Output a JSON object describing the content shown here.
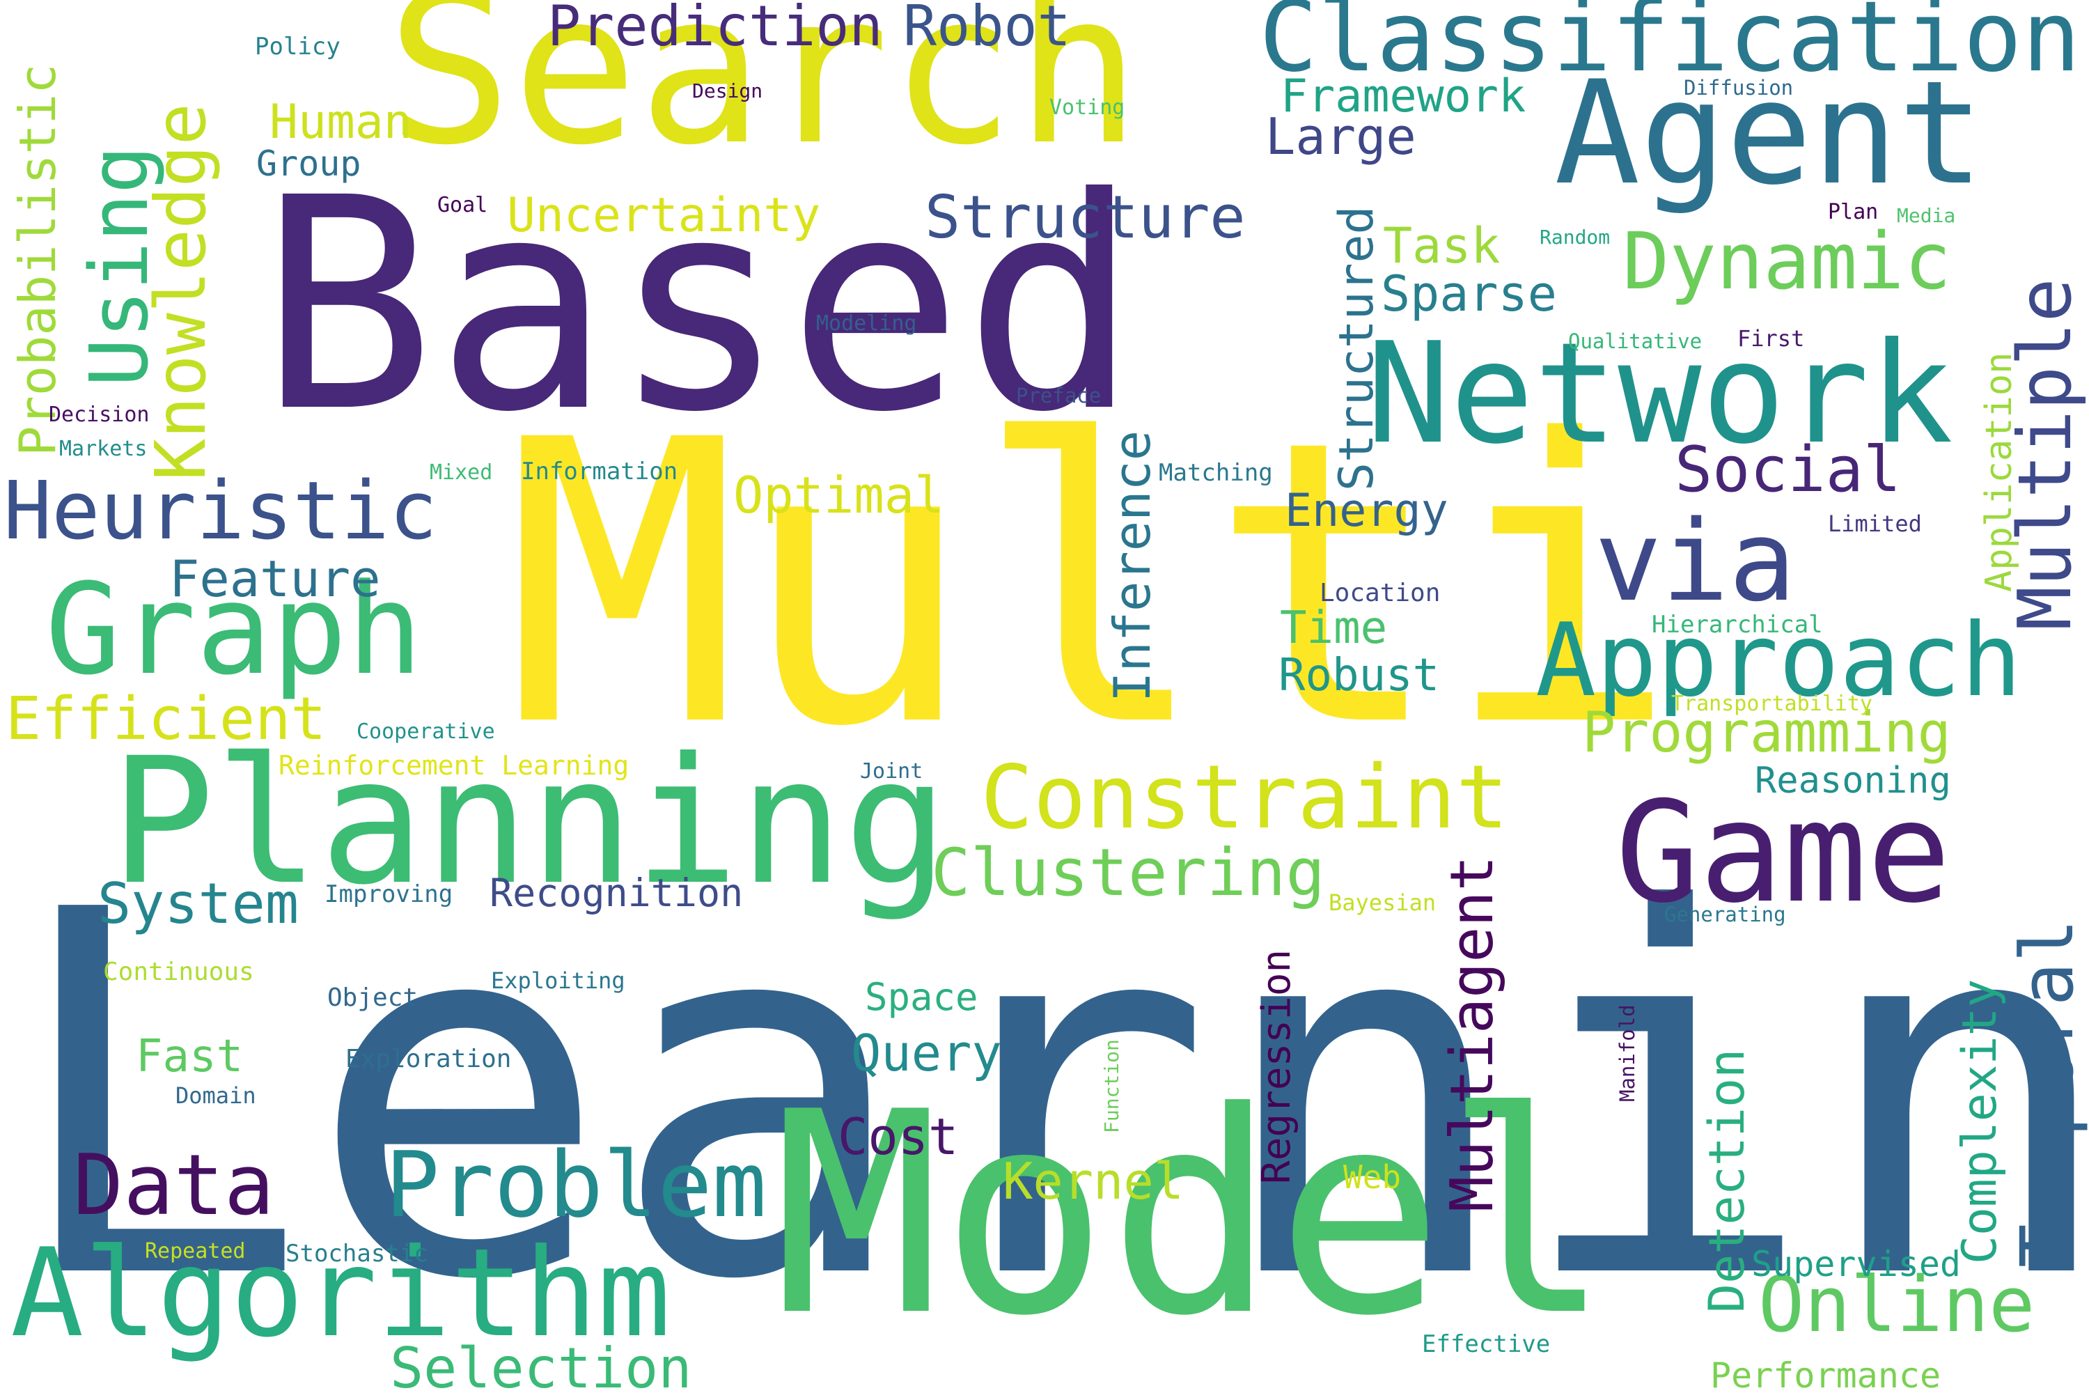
{
  "colors": {
    "background": "#ffffff",
    "palette": [
      "#440154",
      "#482777",
      "#3e4a89",
      "#31688e",
      "#26828e",
      "#1f9e89",
      "#35b779",
      "#6ece58",
      "#b5de2b",
      "#fde725"
    ]
  },
  "words": [
    {
      "id": "learning",
      "text": "Learning",
      "color": "#33638d"
    },
    {
      "id": "multi",
      "text": "Multi",
      "color": "#fde725"
    },
    {
      "id": "based",
      "text": "Based",
      "color": "#482878"
    },
    {
      "id": "model",
      "text": "Model",
      "color": "#4ac16d"
    },
    {
      "id": "search",
      "text": "Search",
      "color": "#dfe318"
    },
    {
      "id": "planning",
      "text": "Planning",
      "color": "#3dbc74"
    },
    {
      "id": "game",
      "text": "Game",
      "color": "#481f70"
    },
    {
      "id": "agent",
      "text": "Agent",
      "color": "#2c728e"
    },
    {
      "id": "network",
      "text": "Network",
      "color": "#20928c"
    },
    {
      "id": "graph",
      "text": "Graph",
      "color": "#3bbb75"
    },
    {
      "id": "algorithm",
      "text": "Algorithm",
      "color": "#27ad81"
    },
    {
      "id": "approach",
      "text": "Approach",
      "color": "#1f988b"
    },
    {
      "id": "classification",
      "text": "Classification",
      "color": "#2a788e"
    },
    {
      "id": "constraint",
      "text": "Constraint",
      "color": "#d2e21b"
    },
    {
      "id": "via",
      "text": "via",
      "color": "#3e4989"
    },
    {
      "id": "problem",
      "text": "Problem",
      "color": "#238a8d"
    },
    {
      "id": "heuristic",
      "text": "Heuristic",
      "color": "#3b528b"
    },
    {
      "id": "data",
      "text": "Data",
      "color": "#450f60"
    },
    {
      "id": "online",
      "text": "Online",
      "color": "#5ec962"
    },
    {
      "id": "temporal",
      "text": "Temporal",
      "color": "#33638d"
    },
    {
      "id": "multiple",
      "text": "Multiple",
      "color": "#3e4a89"
    },
    {
      "id": "dynamic",
      "text": "Dynamic",
      "color": "#6ccd5a"
    },
    {
      "id": "clustering",
      "text": "Clustering",
      "color": "#6ece58"
    },
    {
      "id": "using",
      "text": "Using",
      "color": "#35b779"
    },
    {
      "id": "knowledge",
      "text": "Knowledge",
      "color": "#c2df23"
    },
    {
      "id": "structure",
      "text": "Structure",
      "color": "#3b528b"
    },
    {
      "id": "programming",
      "text": "Programming",
      "color": "#a0da39"
    },
    {
      "id": "multiagent",
      "text": "Multiagent",
      "color": "#46085c"
    },
    {
      "id": "selection",
      "text": "Selection",
      "color": "#3aba76"
    },
    {
      "id": "efficient",
      "text": "Efficient",
      "color": "#d5e21a"
    },
    {
      "id": "social",
      "text": "Social",
      "color": "#482677"
    },
    {
      "id": "system",
      "text": "System",
      "color": "#25858e"
    },
    {
      "id": "probabilistic",
      "text": "Probabilistic",
      "color": "#9fda3a"
    },
    {
      "id": "uncertainty",
      "text": "Uncertainty",
      "color": "#dae319"
    },
    {
      "id": "prediction",
      "text": "Prediction",
      "color": "#472c7a"
    },
    {
      "id": "robot",
      "text": "Robot",
      "color": "#3a548c"
    },
    {
      "id": "feature",
      "text": "Feature",
      "color": "#2d718e"
    },
    {
      "id": "inference",
      "text": "Inference",
      "color": "#2a768e"
    },
    {
      "id": "optimal",
      "text": "Optimal",
      "color": "#d8e219"
    },
    {
      "id": "complexity",
      "text": "Complexity",
      "color": "#22a785"
    },
    {
      "id": "detection",
      "text": "Detection",
      "color": "#29af7f"
    },
    {
      "id": "kernel",
      "text": "Kernel",
      "color": "#b8de29"
    },
    {
      "id": "structured",
      "text": "Structured",
      "color": "#2c728e"
    },
    {
      "id": "framework",
      "text": "Framework",
      "color": "#20a386"
    },
    {
      "id": "human",
      "text": "Human",
      "color": "#cde11d"
    },
    {
      "id": "recognition",
      "text": "Recognition",
      "color": "#3e4c8a"
    },
    {
      "id": "cost",
      "text": "Cost",
      "color": "#481769"
    },
    {
      "id": "query",
      "text": "Query",
      "color": "#238a8d"
    },
    {
      "id": "sparse",
      "text": "Sparse",
      "color": "#277f8e"
    },
    {
      "id": "energy",
      "text": "Energy",
      "color": "#33638d"
    },
    {
      "id": "robust",
      "text": "Robust",
      "color": "#1f968b"
    },
    {
      "id": "task",
      "text": "Task",
      "color": "#9dd93b"
    },
    {
      "id": "large",
      "text": "Large",
      "color": "#3f4788"
    },
    {
      "id": "regression",
      "text": "Regression",
      "color": "#440154"
    },
    {
      "id": "reasoning",
      "text": "Reasoning",
      "color": "#21908d"
    },
    {
      "id": "fast",
      "text": "Fast",
      "color": "#5ec962"
    },
    {
      "id": "time",
      "text": "Time",
      "color": "#4ac16d"
    },
    {
      "id": "supervised",
      "text": "Supervised",
      "color": "#1fa088"
    },
    {
      "id": "space",
      "text": "Space",
      "color": "#2ab07f"
    },
    {
      "id": "group",
      "text": "Group",
      "color": "#2d708e"
    },
    {
      "id": "application",
      "text": "Application",
      "color": "#9bd93c"
    },
    {
      "id": "performance",
      "text": "Performance",
      "color": "#7ad151"
    },
    {
      "id": "web",
      "text": "Web",
      "color": "#d0e11c"
    },
    {
      "id": "reinforcement-learning",
      "text": "Reinforcement Learning",
      "color": "#e2e418"
    },
    {
      "id": "exploration",
      "text": "Exploration",
      "color": "#2e6f8e"
    },
    {
      "id": "information",
      "text": "Information",
      "color": "#23898e"
    },
    {
      "id": "stochastic",
      "text": "Stochastic",
      "color": "#277f8e"
    },
    {
      "id": "cooperative",
      "text": "Cooperative",
      "color": "#21918c"
    },
    {
      "id": "hierarchical",
      "text": "Hierarchical",
      "color": "#35b779"
    },
    {
      "id": "matching",
      "text": "Matching",
      "color": "#2a788e"
    },
    {
      "id": "location",
      "text": "Location",
      "color": "#3e4a89"
    },
    {
      "id": "continuous",
      "text": "Continuous",
      "color": "#addc30"
    },
    {
      "id": "exploiting",
      "text": "Exploiting",
      "color": "#2a768e"
    },
    {
      "id": "object",
      "text": "Object",
      "color": "#31688e"
    },
    {
      "id": "effective",
      "text": "Effective",
      "color": "#1f9a8a"
    },
    {
      "id": "improving",
      "text": "Improving",
      "color": "#2c738e"
    },
    {
      "id": "policy",
      "text": "Policy",
      "color": "#26828e"
    },
    {
      "id": "decision",
      "text": "Decision",
      "color": "#471063"
    },
    {
      "id": "markets",
      "text": "Markets",
      "color": "#228c8d"
    },
    {
      "id": "mixed",
      "text": "Mixed",
      "color": "#3dbc74"
    },
    {
      "id": "domain",
      "text": "Domain",
      "color": "#31688e"
    },
    {
      "id": "repeated",
      "text": "Repeated",
      "color": "#c8e020"
    },
    {
      "id": "bayesian",
      "text": "Bayesian",
      "color": "#c2df23"
    },
    {
      "id": "generating",
      "text": "Generating",
      "color": "#2a788e"
    },
    {
      "id": "joint",
      "text": "Joint",
      "color": "#2e6e8e"
    },
    {
      "id": "design",
      "text": "Design",
      "color": "#46085c"
    },
    {
      "id": "voting",
      "text": "Voting",
      "color": "#4ac16d"
    },
    {
      "id": "diffusion",
      "text": "Diffusion",
      "color": "#30698e"
    },
    {
      "id": "goal",
      "text": "Goal",
      "color": "#450559"
    },
    {
      "id": "modeling",
      "text": "Modeling",
      "color": "#34608d"
    },
    {
      "id": "preface",
      "text": "Preface",
      "color": "#3b528b"
    },
    {
      "id": "random",
      "text": "Random",
      "color": "#22a785"
    },
    {
      "id": "plan",
      "text": "Plan",
      "color": "#440154"
    },
    {
      "id": "media",
      "text": "Media",
      "color": "#4ec36b"
    },
    {
      "id": "qualitative",
      "text": "Qualitative",
      "color": "#35b779"
    },
    {
      "id": "first",
      "text": "First",
      "color": "#481a6c"
    },
    {
      "id": "limited",
      "text": "Limited",
      "color": "#453781"
    },
    {
      "id": "transportability",
      "text": "Transportability",
      "color": "#c0df25"
    },
    {
      "id": "manifold",
      "text": "Manifold",
      "color": "#471365"
    },
    {
      "id": "function",
      "text": "Function",
      "color": "#6ccd5a"
    }
  ]
}
